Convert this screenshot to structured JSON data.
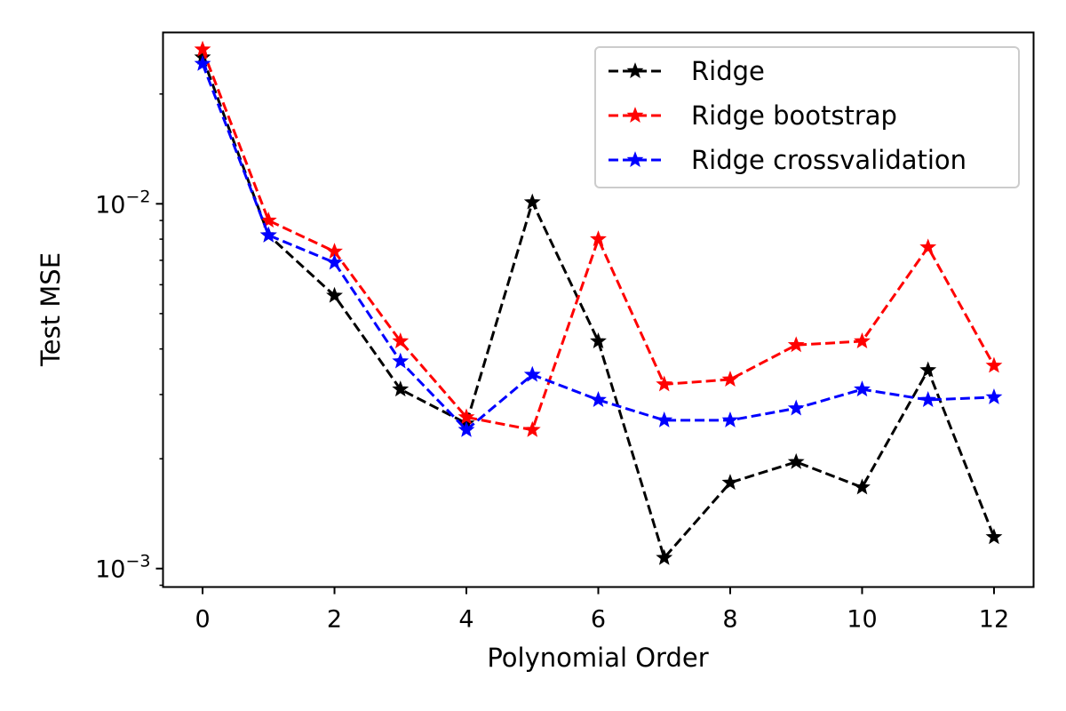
{
  "chart_data": {
    "type": "line",
    "xlabel": "Polynomial Order",
    "ylabel": "Test MSE",
    "yscale": "log",
    "xlim": [
      -0.6,
      12.6
    ],
    "ylim": [
      0.00089,
      0.0295
    ],
    "x_ticks": [
      0,
      2,
      4,
      6,
      8,
      10,
      12
    ],
    "x_tick_labels": [
      "0",
      "2",
      "4",
      "6",
      "8",
      "10",
      "12"
    ],
    "y_major_ticks": [
      0.001,
      0.01
    ],
    "y_tick_labels": [
      {
        "base": "10",
        "exp": "−3"
      },
      {
        "base": "10",
        "exp": "−2"
      }
    ],
    "grid": false,
    "legend_position": "top-right",
    "x": [
      0,
      1,
      2,
      3,
      4,
      5,
      6,
      7,
      8,
      9,
      10,
      11,
      12
    ],
    "series": [
      {
        "name": "Ridge",
        "color": "#000000",
        "linestyle": "dashed",
        "marker": "star",
        "values": [
          0.0252,
          0.0082,
          0.0056,
          0.0031,
          0.0025,
          0.0101,
          0.0042,
          0.00107,
          0.00172,
          0.00196,
          0.00167,
          0.0035,
          0.00122
        ]
      },
      {
        "name": "Ridge bootstrap",
        "color": "#ff0000",
        "linestyle": "dashed",
        "marker": "star",
        "values": [
          0.0265,
          0.009,
          0.0074,
          0.0042,
          0.0026,
          0.0024,
          0.008,
          0.0032,
          0.0033,
          0.0041,
          0.0042,
          0.0076,
          0.0036
        ]
      },
      {
        "name": "Ridge crossvalidation",
        "color": "#0000ff",
        "linestyle": "dashed",
        "marker": "star",
        "values": [
          0.0242,
          0.0082,
          0.0069,
          0.0037,
          0.0024,
          0.0034,
          0.0029,
          0.00255,
          0.00255,
          0.00275,
          0.0031,
          0.0029,
          0.00295
        ]
      }
    ]
  }
}
